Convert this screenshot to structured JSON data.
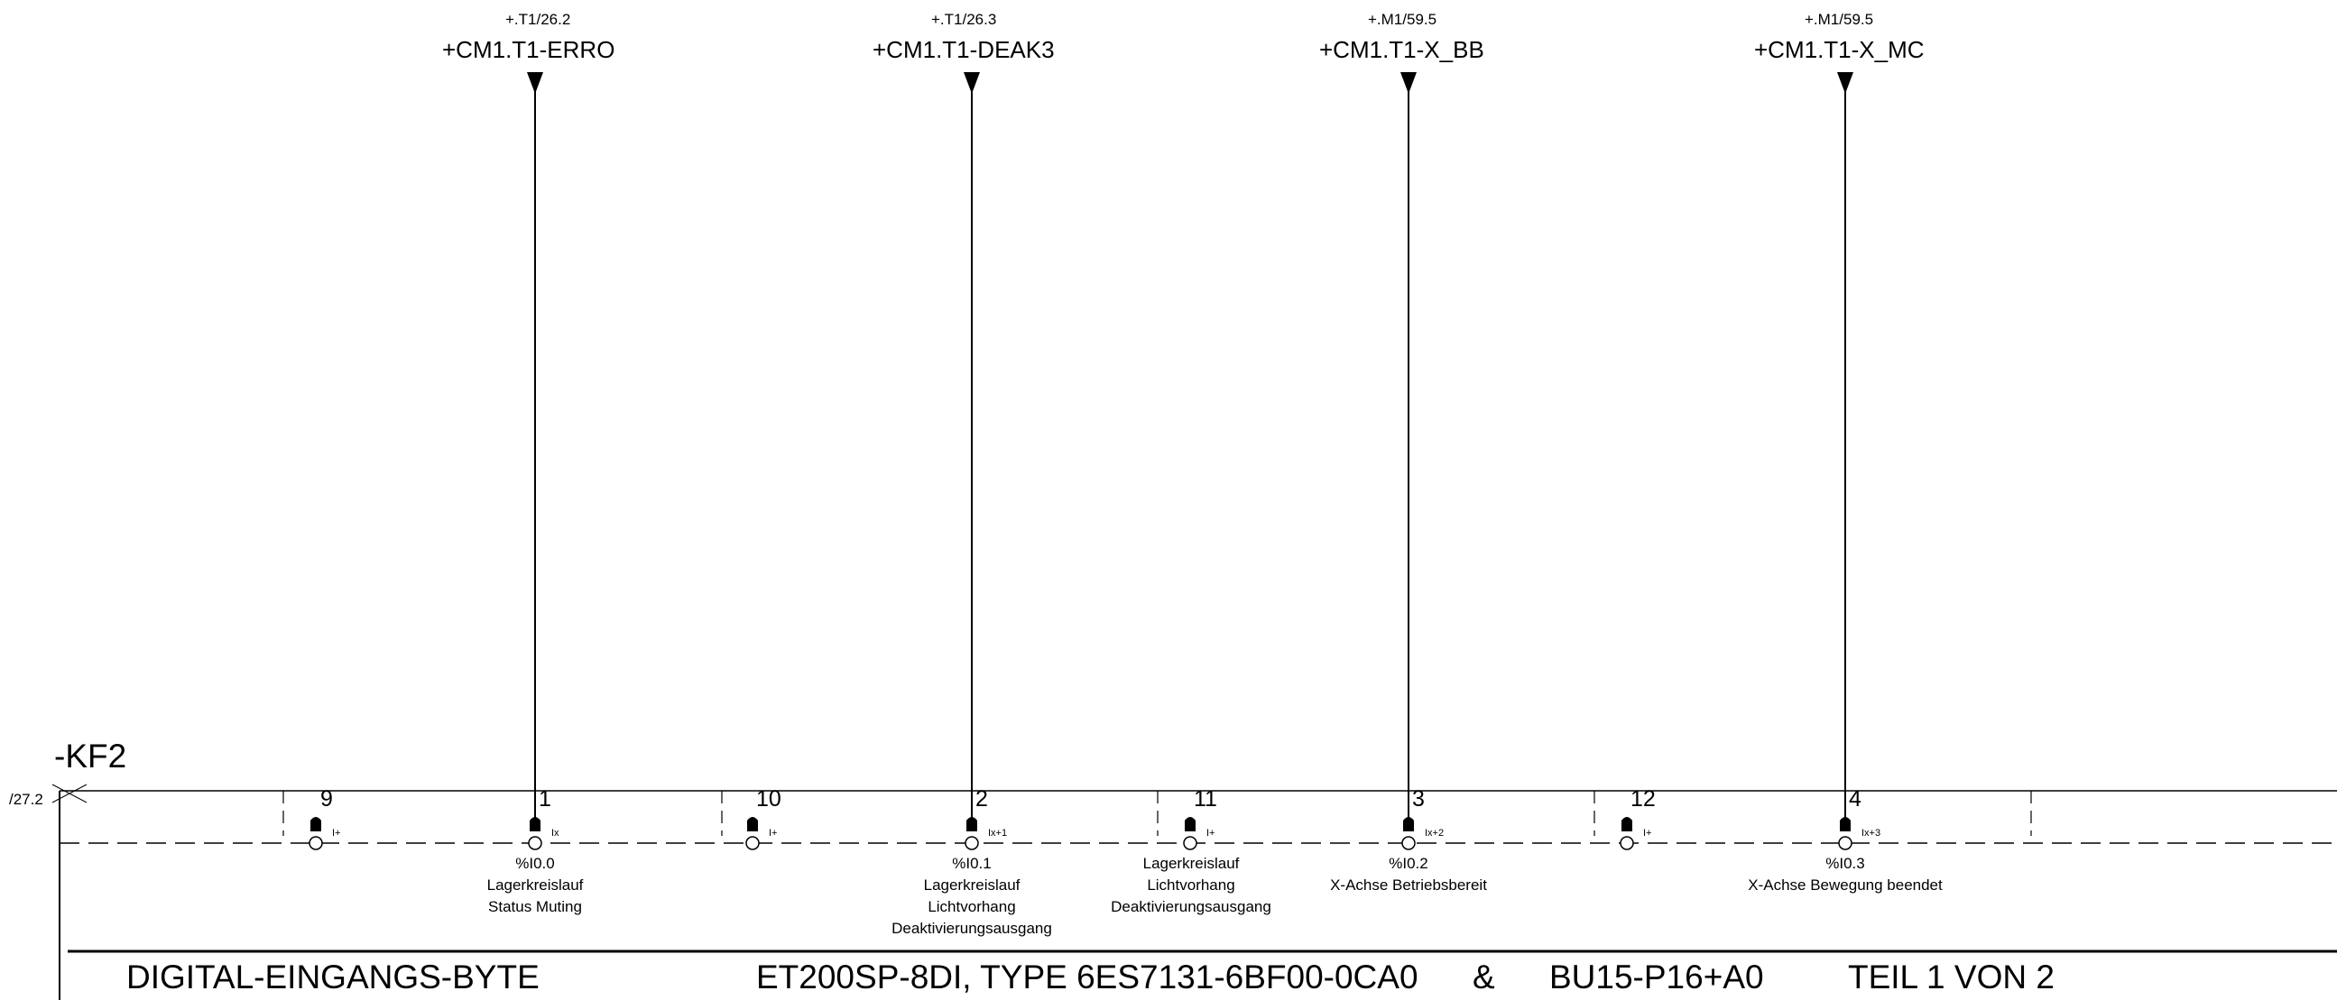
{
  "signals": [
    {
      "ref": "+.T1/26.2",
      "name": "+CM1.T1-ERRO"
    },
    {
      "ref": "+.T1/26.3",
      "name": "+CM1.T1-DEAK3"
    },
    {
      "ref": "+.M1/59.5",
      "name": "+CM1.T1-X_BB"
    },
    {
      "ref": "+.M1/59.5",
      "name": "+CM1.T1-X_MC"
    }
  ],
  "device": {
    "tag": "-KF2",
    "ref": "/27.2"
  },
  "terminals": [
    {
      "pin": "9",
      "label": "I+"
    },
    {
      "pin": "1",
      "label": "Ix"
    },
    {
      "pin": "10",
      "label": "I+"
    },
    {
      "pin": "2",
      "label": "Ix+1"
    },
    {
      "pin": "11",
      "label": "I+"
    },
    {
      "pin": "3",
      "label": "Ix+2"
    },
    {
      "pin": "12",
      "label": "I+"
    },
    {
      "pin": "4",
      "label": "Ix+3"
    }
  ],
  "descriptions": [
    {
      "lines": [
        "%I0.0",
        "Lagerkreislauf",
        "Status Muting"
      ]
    },
    {
      "lines": [
        "%I0.1",
        "Lagerkreislauf",
        "Lichtvorhang",
        "Deaktivierungsausgang"
      ]
    },
    {
      "lines": [
        "Lagerkreislauf",
        "Lichtvorhang",
        "Deaktivierungsausgang"
      ]
    },
    {
      "lines": [
        "%I0.2",
        "X-Achse Betriebsbereit"
      ]
    },
    {
      "lines": [
        "%I0.3",
        "X-Achse Bewegung beendet"
      ]
    }
  ],
  "footer": {
    "left": "DIGITAL-EINGANGS-BYTE",
    "center": "ET200SP-8DI, TYPE 6ES7131-6BF00-0CA0",
    "amp": "&",
    "base": "BU15-P16+A0",
    "part": "TEIL 1 VON 2"
  }
}
